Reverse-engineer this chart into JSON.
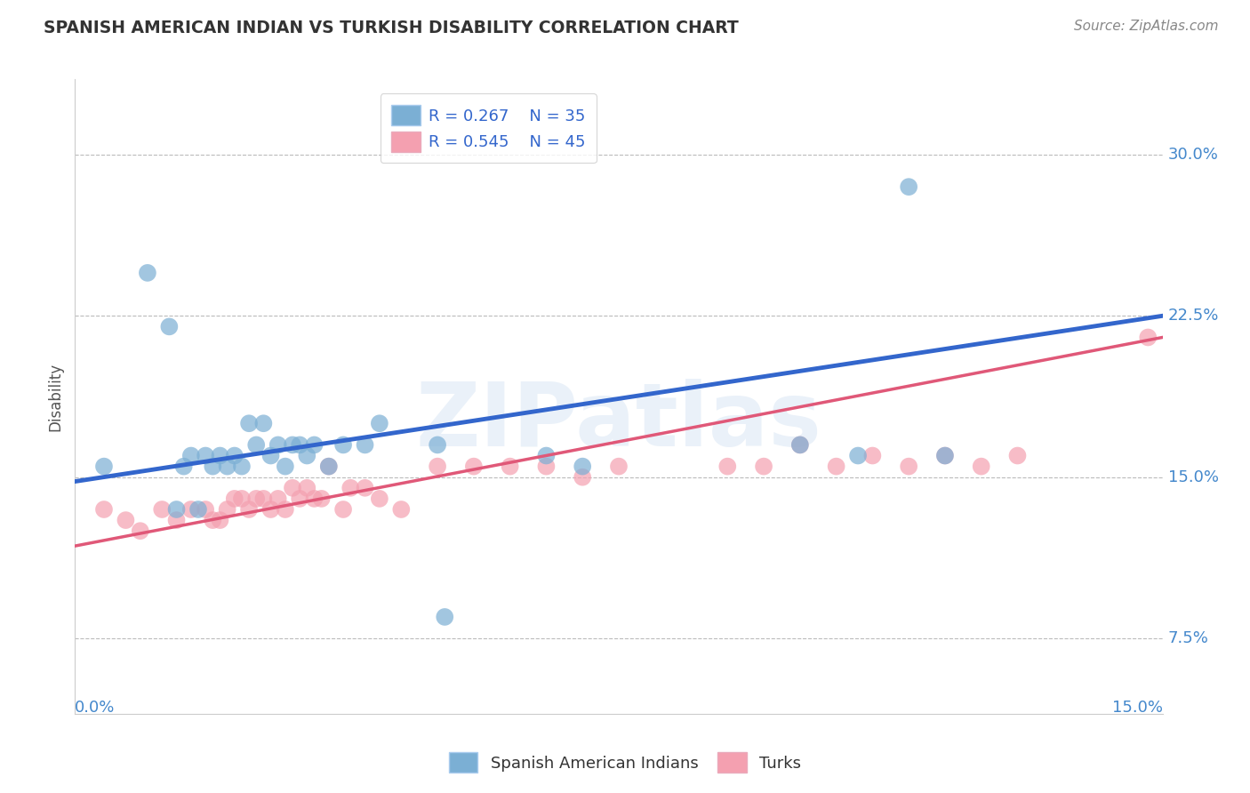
{
  "title": "SPANISH AMERICAN INDIAN VS TURKISH DISABILITY CORRELATION CHART",
  "source": "Source: ZipAtlas.com",
  "ylabel": "Disability",
  "y_tick_labels": [
    "7.5%",
    "15.0%",
    "22.5%",
    "30.0%"
  ],
  "y_tick_values": [
    0.075,
    0.15,
    0.225,
    0.3
  ],
  "xlim": [
    0.0,
    0.15
  ],
  "ylim": [
    0.04,
    0.335
  ],
  "blue_R": "0.267",
  "blue_N": "35",
  "pink_R": "0.545",
  "pink_N": "45",
  "blue_color": "#7BAFD4",
  "pink_color": "#F4A0B0",
  "blue_line_color": "#3366CC",
  "pink_line_color": "#E05878",
  "legend_label_blue": "Spanish American Indians",
  "legend_label_pink": "Turks",
  "watermark": "ZIPatlas",
  "background_color": "#ffffff",
  "blue_x": [
    0.004,
    0.01,
    0.013,
    0.014,
    0.015,
    0.016,
    0.017,
    0.018,
    0.019,
    0.02,
    0.021,
    0.022,
    0.023,
    0.024,
    0.025,
    0.026,
    0.027,
    0.028,
    0.029,
    0.03,
    0.031,
    0.032,
    0.033,
    0.035,
    0.037,
    0.04,
    0.042,
    0.05,
    0.051,
    0.065,
    0.07,
    0.1,
    0.108,
    0.115,
    0.12
  ],
  "blue_y": [
    0.155,
    0.245,
    0.22,
    0.135,
    0.155,
    0.16,
    0.135,
    0.16,
    0.155,
    0.16,
    0.155,
    0.16,
    0.155,
    0.175,
    0.165,
    0.175,
    0.16,
    0.165,
    0.155,
    0.165,
    0.165,
    0.16,
    0.165,
    0.155,
    0.165,
    0.165,
    0.175,
    0.165,
    0.085,
    0.16,
    0.155,
    0.165,
    0.16,
    0.285,
    0.16
  ],
  "pink_x": [
    0.004,
    0.007,
    0.009,
    0.012,
    0.014,
    0.016,
    0.018,
    0.019,
    0.02,
    0.021,
    0.022,
    0.023,
    0.024,
    0.025,
    0.026,
    0.027,
    0.028,
    0.029,
    0.03,
    0.031,
    0.032,
    0.033,
    0.034,
    0.035,
    0.037,
    0.038,
    0.04,
    0.042,
    0.045,
    0.05,
    0.055,
    0.06,
    0.065,
    0.07,
    0.075,
    0.09,
    0.095,
    0.1,
    0.105,
    0.11,
    0.115,
    0.12,
    0.125,
    0.13,
    0.148
  ],
  "pink_y": [
    0.135,
    0.13,
    0.125,
    0.135,
    0.13,
    0.135,
    0.135,
    0.13,
    0.13,
    0.135,
    0.14,
    0.14,
    0.135,
    0.14,
    0.14,
    0.135,
    0.14,
    0.135,
    0.145,
    0.14,
    0.145,
    0.14,
    0.14,
    0.155,
    0.135,
    0.145,
    0.145,
    0.14,
    0.135,
    0.155,
    0.155,
    0.155,
    0.155,
    0.15,
    0.155,
    0.155,
    0.155,
    0.165,
    0.155,
    0.16,
    0.155,
    0.16,
    0.155,
    0.16,
    0.215
  ],
  "blue_line_x0": 0.0,
  "blue_line_y0": 0.148,
  "blue_line_x1": 0.15,
  "blue_line_y1": 0.225,
  "pink_line_x0": 0.0,
  "pink_line_y0": 0.118,
  "pink_line_x1": 0.15,
  "pink_line_y1": 0.215
}
